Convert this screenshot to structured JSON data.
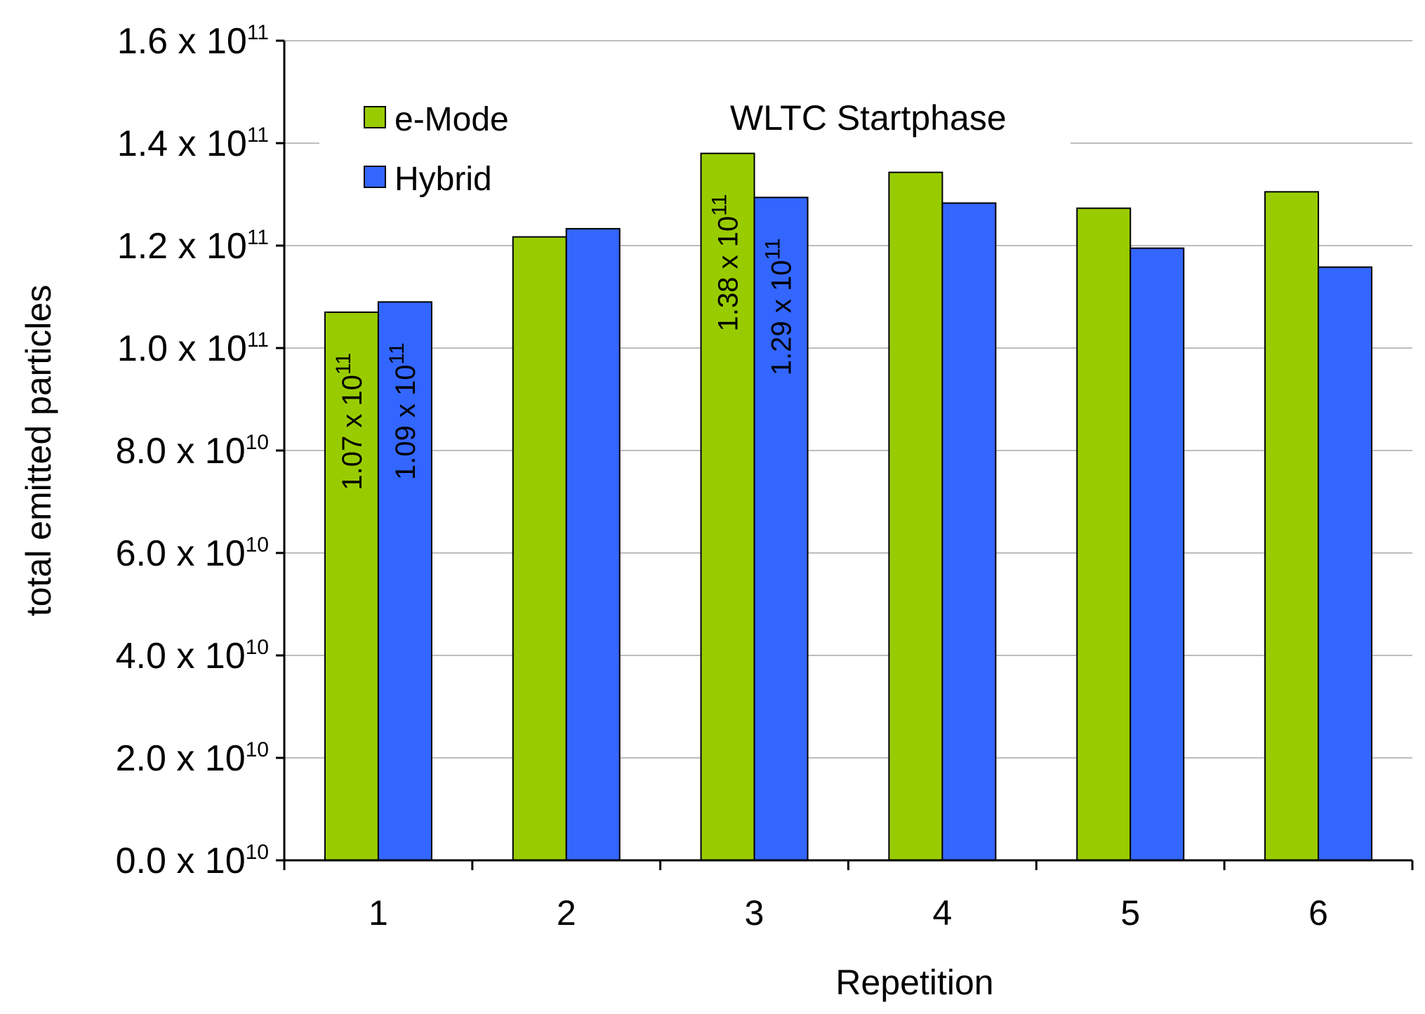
{
  "chart_data": {
    "type": "bar",
    "title": "WLTC Startphase",
    "xlabel": "Repetition",
    "ylabel": "total emitted particles",
    "categories": [
      "1",
      "2",
      "3",
      "4",
      "5",
      "6"
    ],
    "ylim": [
      0,
      160000000000.0
    ],
    "grid": true,
    "legend_position": "top-left",
    "y_ticks": [
      {
        "value": 0,
        "mantissa": "0.0",
        "times": "x",
        "base": "10",
        "exponent": "10"
      },
      {
        "value": 20000000000.0,
        "mantissa": "2.0",
        "times": "x",
        "base": "10",
        "exponent": "10"
      },
      {
        "value": 40000000000.0,
        "mantissa": "4.0",
        "times": "x",
        "base": "10",
        "exponent": "10"
      },
      {
        "value": 60000000000.0,
        "mantissa": "6.0",
        "times": "x",
        "base": "10",
        "exponent": "10"
      },
      {
        "value": 80000000000.0,
        "mantissa": "8.0",
        "times": "x",
        "base": "10",
        "exponent": "10"
      },
      {
        "value": 100000000000.0,
        "mantissa": "1.0",
        "times": "x",
        "base": "10",
        "exponent": "11"
      },
      {
        "value": 120000000000.0,
        "mantissa": "1.2",
        "times": "x",
        "base": "10",
        "exponent": "11"
      },
      {
        "value": 140000000000.0,
        "mantissa": "1.4",
        "times": "x",
        "base": "10",
        "exponent": "11"
      },
      {
        "value": 160000000000.0,
        "mantissa": "1.6",
        "times": "x",
        "base": "10",
        "exponent": "11"
      }
    ],
    "series": [
      {
        "name": "e-Mode",
        "color": "#99cc00",
        "values": [
          107000000000.0,
          121700000000.0,
          138000000000.0,
          134300000000.0,
          127300000000.0,
          130500000000.0
        ]
      },
      {
        "name": "Hybrid",
        "color": "#3366ff",
        "values": [
          109000000000.0,
          123300000000.0,
          129400000000.0,
          128300000000.0,
          119500000000.0,
          115800000000.0
        ]
      }
    ],
    "annotations": [
      {
        "series": 0,
        "category": 0,
        "text": "1.07 x 10",
        "exponent": "11"
      },
      {
        "series": 1,
        "category": 0,
        "text": "1.09 x 10",
        "exponent": "11"
      },
      {
        "series": 0,
        "category": 2,
        "text": "1.38 x 10",
        "exponent": "11"
      },
      {
        "series": 1,
        "category": 2,
        "text": "1.29 x 10",
        "exponent": "11"
      }
    ]
  }
}
